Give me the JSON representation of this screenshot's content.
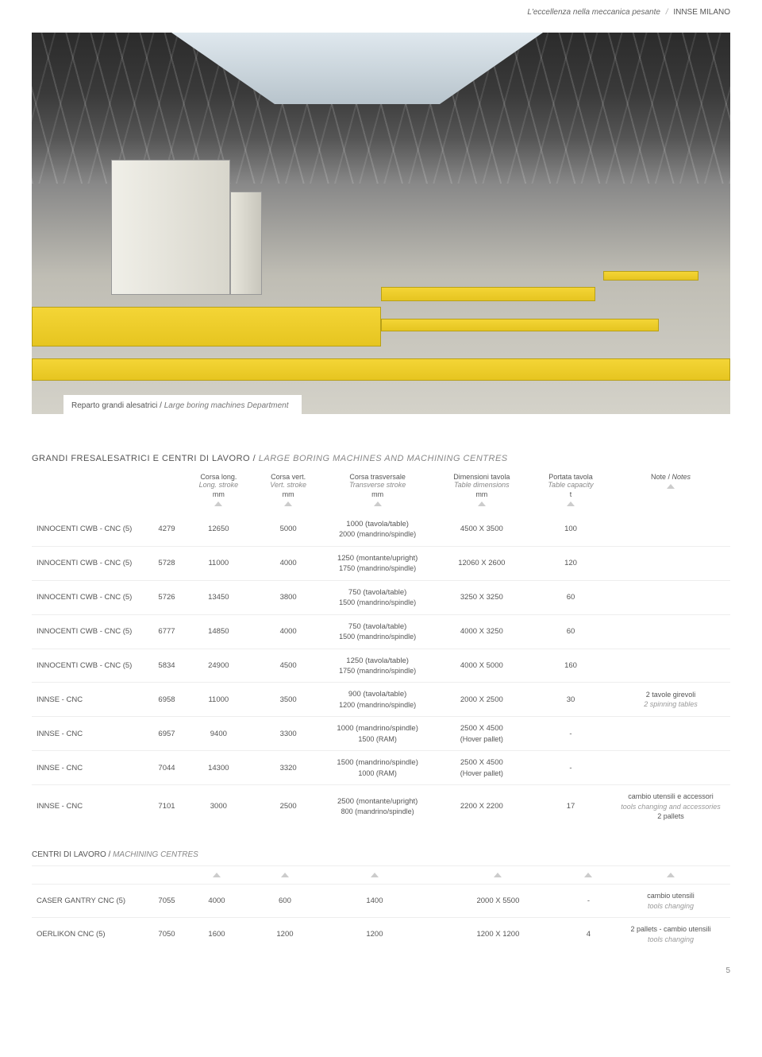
{
  "header": {
    "tagline_it": "L'eccellenza nella meccanica pesante",
    "tagline_divider": "/",
    "company": "INNSE MILANO"
  },
  "hero": {
    "caption_it": "Reparto grandi alesatrici",
    "caption_sep": " / ",
    "caption_en": "Large boring machines Department"
  },
  "section1": {
    "title_it": "GRANDI FRESALESATRICI E CENTRI DI LAVORO",
    "title_sep": " / ",
    "title_en": "LARGE BORING MACHINES AND MACHINING CENTRES",
    "columns": [
      {
        "it": "",
        "en": "",
        "unit": ""
      },
      {
        "it": "",
        "en": "",
        "unit": ""
      },
      {
        "it": "Corsa long.",
        "en": "Long. stroke",
        "unit": "mm"
      },
      {
        "it": "Corsa vert.",
        "en": "Vert. stroke",
        "unit": "mm"
      },
      {
        "it": "Corsa trasversale",
        "en": "Transverse stroke",
        "unit": "mm"
      },
      {
        "it": "Dimensioni tavola",
        "en": "Table dimensions",
        "unit": "mm"
      },
      {
        "it": "Portata tavola",
        "en": "Table capacity",
        "unit": "t"
      },
      {
        "it": "Note",
        "en": "Notes",
        "unit": ""
      }
    ],
    "rows": [
      {
        "name": "INNOCENTI CWB - CNC (5)",
        "id": "4279",
        "long": "12650",
        "vert": "5000",
        "trans_l1": "1000 (tavola/table)",
        "trans_l2": "2000 (mandrino/spindle)",
        "dim": "4500 X 3500",
        "cap": "100",
        "note_it": "",
        "note_en": ""
      },
      {
        "name": "INNOCENTI CWB - CNC (5)",
        "id": "5728",
        "long": "11000",
        "vert": "4000",
        "trans_l1": "1250 (montante/upright)",
        "trans_l2": "1750 (mandrino/spindle)",
        "dim": "12060 X 2600",
        "cap": "120",
        "note_it": "",
        "note_en": ""
      },
      {
        "name": "INNOCENTI CWB - CNC (5)",
        "id": "5726",
        "long": "13450",
        "vert": "3800",
        "trans_l1": "750 (tavola/table)",
        "trans_l2": "1500 (mandrino/spindle)",
        "dim": "3250 X 3250",
        "cap": "60",
        "note_it": "",
        "note_en": ""
      },
      {
        "name": "INNOCENTI CWB - CNC (5)",
        "id": "6777",
        "long": "14850",
        "vert": "4000",
        "trans_l1": "750 (tavola/table)",
        "trans_l2": "1500 (mandrino/spindle)",
        "dim": "4000 X 3250",
        "cap": "60",
        "note_it": "",
        "note_en": ""
      },
      {
        "name": "INNOCENTI CWB - CNC (5)",
        "id": "5834",
        "long": "24900",
        "vert": "4500",
        "trans_l1": "1250 (tavola/table)",
        "trans_l2": "1750 (mandrino/spindle)",
        "dim": "4000 X 5000",
        "cap": "160",
        "note_it": "",
        "note_en": ""
      },
      {
        "name": "INNSE - CNC",
        "id": "6958",
        "long": "11000",
        "vert": "3500",
        "trans_l1": "900 (tavola/table)",
        "trans_l2": "1200 (mandrino/spindle)",
        "dim": "2000 X 2500",
        "cap": "30",
        "note_it": "2 tavole girevoli",
        "note_en": "2 spinning tables"
      },
      {
        "name": "INNSE - CNC",
        "id": "6957",
        "long": "9400",
        "vert": "3300",
        "trans_l1": "1000 (mandrino/spindle)",
        "trans_l2": "1500 (RAM)",
        "dim": "2500 X 4500",
        "dim_l2": "(Hover pallet)",
        "cap": "-",
        "note_it": "",
        "note_en": ""
      },
      {
        "name": "INNSE - CNC",
        "id": "7044",
        "long": "14300",
        "vert": "3320",
        "trans_l1": "1500 (mandrino/spindle)",
        "trans_l2": "1000 (RAM)",
        "dim": "2500 X 4500",
        "dim_l2": "(Hover pallet)",
        "cap": "-",
        "note_it": "",
        "note_en": ""
      },
      {
        "name": "INNSE - CNC",
        "id": "7101",
        "long": "3000",
        "vert": "2500",
        "trans_l1": "2500 (montante/upright)",
        "trans_l2": "800 (mandrino/spindle)",
        "dim": "2200 X 2200",
        "cap": "17",
        "note_it": "cambio utensili e accessori",
        "note_en": "tools changing and accessories",
        "note_l3": "2 pallets"
      }
    ]
  },
  "section2": {
    "title_it": "CENTRI DI LAVORO",
    "title_sep": " / ",
    "title_en": "MACHINING CENTRES",
    "rows": [
      {
        "name": "CASER GANTRY CNC (5)",
        "id": "7055",
        "long": "4000",
        "vert": "600",
        "trans": "1400",
        "dim": "2000 X 5500",
        "cap": "-",
        "note_it": "cambio utensili",
        "note_en": "tools changing"
      },
      {
        "name": "OERLIKON CNC (5)",
        "id": "7050",
        "long": "1600",
        "vert": "1200",
        "trans": "1200",
        "dim": "1200 X 1200",
        "cap": "4",
        "note_it": "2 pallets - cambio utensili",
        "note_en": "tools changing"
      }
    ]
  },
  "page_number": "5",
  "colors": {
    "yellow": "#f4d536",
    "text": "#555555",
    "muted": "#888888",
    "border": "#eeeeee"
  }
}
